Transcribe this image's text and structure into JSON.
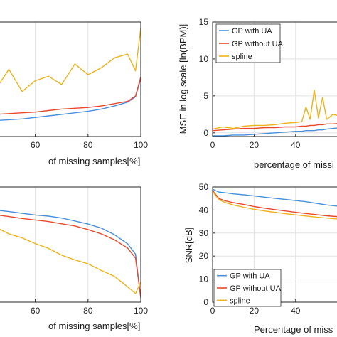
{
  "chart_data": [
    {
      "type": "line",
      "panel": "top-left",
      "xlabel": "of missing samples[%]",
      "ylabel": "",
      "xlim": [
        45,
        100
      ],
      "ylim": [
        0,
        15
      ],
      "xticks": [
        "60",
        "80",
        "100"
      ],
      "yticks": [],
      "grid": true,
      "legend": null,
      "x": [
        45,
        50,
        55,
        60,
        65,
        70,
        75,
        80,
        85,
        90,
        95,
        98,
        100
      ],
      "series": [
        {
          "color": "#4a90d9",
          "values": [
            2.1,
            2.2,
            2.3,
            2.5,
            2.7,
            2.9,
            3.1,
            3.3,
            3.6,
            4.0,
            4.5,
            5.2,
            7.6
          ]
        },
        {
          "color": "#e8492c",
          "values": [
            2.9,
            3.0,
            3.1,
            3.2,
            3.4,
            3.6,
            3.7,
            3.8,
            4.0,
            4.3,
            4.6,
            5.3,
            7.8
          ]
        },
        {
          "color": "#eeb21c",
          "values": [
            6.2,
            8.8,
            5.9,
            7.3,
            7.9,
            6.8,
            9.5,
            8.1,
            9.0,
            10.3,
            10.8,
            8.6,
            14.2
          ]
        }
      ]
    },
    {
      "type": "line",
      "panel": "top-right",
      "xlabel": "percentage of missi",
      "ylabel": "MSE in log scale [ln(BPM)]",
      "xlim": [
        0,
        62
      ],
      "ylim": [
        -0.5,
        15
      ],
      "xticks": [
        "0",
        "20",
        "40"
      ],
      "yticks": [
        "0",
        "5",
        "10",
        "15"
      ],
      "grid": true,
      "legend": "top-left",
      "x": [
        0,
        5,
        10,
        15,
        20,
        25,
        30,
        35,
        40,
        43,
        45,
        47,
        49,
        51,
        53,
        55,
        58,
        62
      ],
      "series": [
        {
          "name": "GP with UA",
          "color": "#4a90d9",
          "values": [
            -0.4,
            -0.4,
            -0.3,
            -0.3,
            -0.2,
            -0.1,
            0.0,
            0.1,
            0.2,
            0.2,
            0.3,
            0.3,
            0.3,
            0.4,
            0.4,
            0.5,
            0.6,
            0.7
          ]
        },
        {
          "name": "GP without UA",
          "color": "#e8492c",
          "values": [
            0.3,
            0.4,
            0.5,
            0.6,
            0.6,
            0.7,
            0.7,
            0.8,
            0.8,
            0.9,
            0.9,
            1.0,
            1.0,
            1.1,
            1.1,
            1.2,
            1.2,
            1.3
          ]
        },
        {
          "name": "spline",
          "color": "#eeb21c",
          "values": [
            0.5,
            0.8,
            0.6,
            0.9,
            1.0,
            1.0,
            1.1,
            1.3,
            1.4,
            1.5,
            3.5,
            1.8,
            5.8,
            2.0,
            4.8,
            1.8,
            2.5,
            2.2
          ]
        }
      ]
    },
    {
      "type": "line",
      "panel": "bottom-left",
      "xlabel": "of missing samples[%]",
      "ylabel": "",
      "xlim": [
        45,
        100
      ],
      "ylim": [
        0,
        60
      ],
      "xticks": [
        "60",
        "80",
        "100"
      ],
      "yticks": [],
      "grid": true,
      "legend": null,
      "x": [
        45,
        50,
        55,
        60,
        65,
        70,
        75,
        80,
        85,
        90,
        95,
        98,
        100
      ],
      "series": [
        {
          "color": "#4a90d9",
          "values": [
            48.0,
            47.2,
            46.3,
            45.4,
            44.8,
            43.8,
            42.3,
            40.7,
            38.6,
            35.2,
            30.4,
            25.0,
            2.0
          ]
        },
        {
          "color": "#e8492c",
          "values": [
            45.5,
            44.6,
            43.6,
            42.8,
            42.0,
            40.8,
            39.7,
            37.8,
            35.6,
            32.5,
            28.2,
            23.0,
            2.5
          ]
        },
        {
          "color": "#eeb21c",
          "values": [
            39.0,
            35.6,
            33.5,
            30.5,
            28.0,
            24.5,
            22.0,
            20.0,
            16.5,
            13.5,
            8.0,
            4.5,
            10.5
          ]
        }
      ]
    },
    {
      "type": "line",
      "panel": "bottom-right",
      "xlabel": "Percentage of miss",
      "ylabel": "SNR[dB]",
      "xlim": [
        0,
        62
      ],
      "ylim": [
        0,
        50
      ],
      "xticks": [
        "0",
        "20",
        "40"
      ],
      "yticks": [
        "0",
        "10",
        "20",
        "30",
        "40",
        "50"
      ],
      "grid": true,
      "legend": "bottom-left",
      "x": [
        0,
        3,
        6,
        10,
        15,
        20,
        25,
        30,
        35,
        40,
        45,
        50,
        55,
        62
      ],
      "series": [
        {
          "name": "GP with UA",
          "color": "#4a90d9",
          "values": [
            49.0,
            47.8,
            47.5,
            47.0,
            46.6,
            46.1,
            45.6,
            45.1,
            44.6,
            44.1,
            43.6,
            42.9,
            42.2,
            41.5
          ]
        },
        {
          "name": "GP without UA",
          "color": "#e8492c",
          "values": [
            48.5,
            45.0,
            44.0,
            43.2,
            42.4,
            41.5,
            40.8,
            40.2,
            39.6,
            39.0,
            38.5,
            38.0,
            37.5,
            37.0
          ]
        },
        {
          "name": "spline",
          "color": "#eeb21c",
          "values": [
            48.0,
            44.5,
            43.3,
            42.2,
            41.2,
            40.3,
            39.6,
            39.0,
            38.4,
            37.9,
            37.4,
            36.9,
            36.5,
            36.0
          ]
        }
      ]
    }
  ]
}
